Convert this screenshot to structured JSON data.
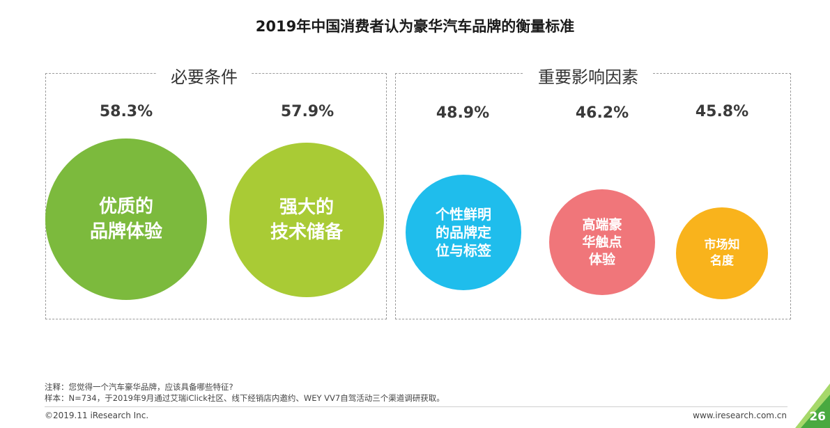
{
  "chart_data": {
    "type": "bubble",
    "title": "2019年中国消费者认为豪华汽车品牌的衡量标准",
    "groups": [
      {
        "name": "必要条件",
        "items": [
          {
            "label": "优质的\n品牌体验",
            "value_text": "58.3%",
            "value": 58.3,
            "color": "#7cba3d"
          },
          {
            "label": "强大的\n技术储备",
            "value_text": "57.9%",
            "value": 57.9,
            "color": "#a9cb35"
          }
        ]
      },
      {
        "name": "重要影响因素",
        "items": [
          {
            "label": "个性鲜明\n的品牌定\n位与标签",
            "value_text": "48.9%",
            "value": 48.9,
            "color": "#1fbdec"
          },
          {
            "label": "高端豪\n华触点\n体验",
            "value_text": "46.2%",
            "value": 46.2,
            "color": "#f0767a"
          },
          {
            "label": "市场知\n名度",
            "value_text": "45.8%",
            "value": 45.8,
            "color": "#f9b31c"
          }
        ]
      }
    ]
  },
  "notes": {
    "note_line": "注释：您觉得一个汽车豪华品牌，应该具备哪些特征?",
    "sample_line": "样本：N=734，于2019年9月通过艾瑞iClick社区、线下经销店内邀约、WEY VV7自驾活动三个渠道调研获取。"
  },
  "footer": {
    "copyright": "©2019.11 iResearch Inc.",
    "website": "www.iresearch.com.cn",
    "page_number": "26"
  },
  "colors": {
    "corner_light": "#a6d86a",
    "corner_dark": "#49a940"
  }
}
